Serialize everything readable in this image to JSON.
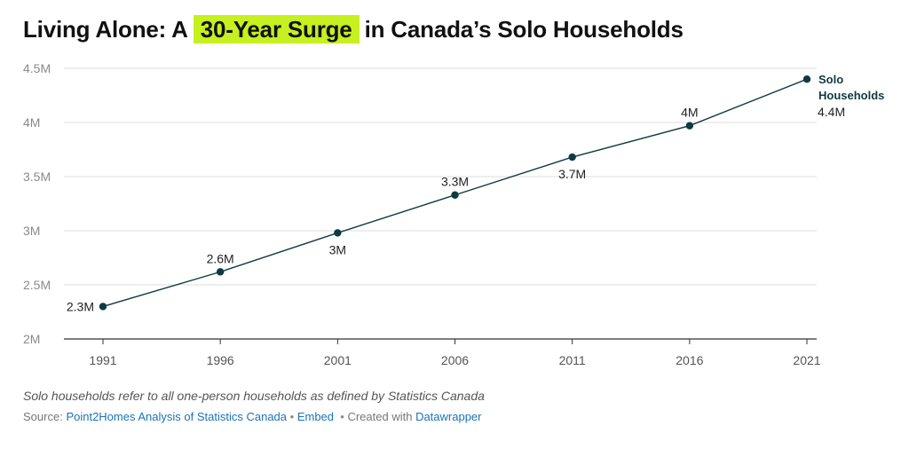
{
  "header": {
    "title_before": "Living Alone: A",
    "title_highlight": "30-Year Surge",
    "title_after": "in Canada’s Solo Households",
    "highlight_color": "#c6f01f"
  },
  "footer": {
    "note": "Solo households refer to all one-person households as defined by Statistics Canada",
    "source_prefix": "Source:",
    "source_link": "Point2Homes Analysis of Statistics Canada",
    "embed_link": "Embed",
    "separator": "•",
    "created_prefix": "Created with",
    "created_link": "Datawrapper",
    "link_color": "#1a73b8"
  },
  "chart_data": {
    "type": "line",
    "title": "Living Alone: A 30-Year Surge in Canada’s Solo Households",
    "xlabel": "",
    "ylabel": "",
    "x": [
      "1991",
      "1996",
      "2001",
      "2006",
      "2011",
      "2016",
      "2021"
    ],
    "ylim": [
      2000000,
      4500000
    ],
    "yticks": [
      2000000,
      2500000,
      3000000,
      3500000,
      4000000,
      4500000
    ],
    "ytick_labels": [
      "2M",
      "2.5M",
      "3M",
      "3.5M",
      "4M",
      "4.5M"
    ],
    "grid": true,
    "series": [
      {
        "name": "Solo Households",
        "label_lines": [
          "Solo",
          "Households"
        ],
        "color": "#0f3a3f",
        "values": [
          2300000,
          2620000,
          2980000,
          3330000,
          3680000,
          3970000,
          4400000
        ],
        "data_labels": [
          "2.3M",
          "2.6M",
          "3M",
          "3.3M",
          "3.7M",
          "4M",
          "4.4M"
        ]
      }
    ]
  }
}
